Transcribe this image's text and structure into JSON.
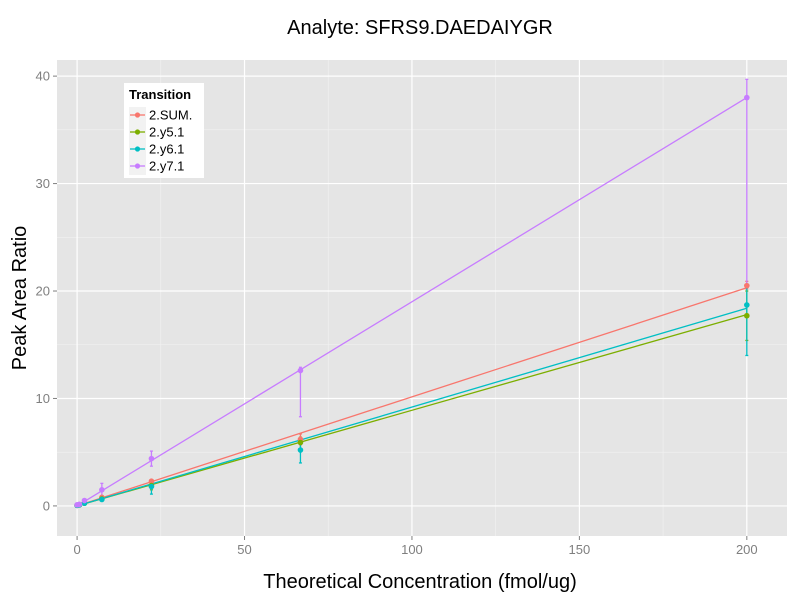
{
  "chart_data": {
    "type": "line",
    "title": "Analyte: SFRS9.DAEDAIYGR",
    "xlabel": "Theoretical Concentration (fmol/ug)",
    "ylabel": "Peak Area Ratio",
    "xlim": [
      -6,
      212
    ],
    "ylim": [
      -2.8,
      41.5
    ],
    "x_ticks": [
      0,
      50,
      100,
      150,
      200
    ],
    "y_ticks": [
      0,
      10,
      20,
      30,
      40
    ],
    "grid": true,
    "legend": {
      "title": "Transition",
      "position": "top-left",
      "entries": [
        "2.SUM.",
        "2.y5.1",
        "2.y6.1",
        "2.y7.1"
      ]
    },
    "series": [
      {
        "name": "2.SUM.",
        "color": "#F8766D",
        "fit": [
          [
            0,
            0.0
          ],
          [
            200,
            20.3
          ]
        ],
        "points": [
          {
            "x": 0,
            "y": 0.05
          },
          {
            "x": 0.7,
            "y": 0.1
          },
          {
            "x": 2.2,
            "y": 0.3
          },
          {
            "x": 7.4,
            "y": 0.8
          },
          {
            "x": 22.2,
            "y": 2.3
          },
          {
            "x": 66.7,
            "y": 6.2,
            "lo": 5.7,
            "hi": 6.7
          },
          {
            "x": 200,
            "y": 20.5,
            "lo": 20.2,
            "hi": 20.9
          }
        ]
      },
      {
        "name": "2.y5.1",
        "color": "#7CAE00",
        "fit": [
          [
            0,
            0.0
          ],
          [
            200,
            17.8
          ]
        ],
        "points": [
          {
            "x": 0,
            "y": 0.05
          },
          {
            "x": 0.7,
            "y": 0.1
          },
          {
            "x": 2.2,
            "y": 0.25
          },
          {
            "x": 7.4,
            "y": 0.65
          },
          {
            "x": 22.2,
            "y": 1.9,
            "lo": 1.5,
            "hi": 2.3
          },
          {
            "x": 66.7,
            "y": 5.9,
            "lo": 5.3,
            "hi": 6.4
          },
          {
            "x": 200,
            "y": 17.7,
            "lo": 15.4,
            "hi": 20.0
          }
        ]
      },
      {
        "name": "2.y6.1",
        "color": "#00BFC4",
        "fit": [
          [
            0,
            0.0
          ],
          [
            200,
            18.4
          ]
        ],
        "points": [
          {
            "x": 0,
            "y": 0.05
          },
          {
            "x": 0.7,
            "y": 0.1
          },
          {
            "x": 2.2,
            "y": 0.25
          },
          {
            "x": 7.4,
            "y": 0.6
          },
          {
            "x": 22.2,
            "y": 1.8,
            "lo": 1.1,
            "hi": 2.4
          },
          {
            "x": 66.7,
            "y": 5.2,
            "lo": 4.0,
            "hi": 6.3
          },
          {
            "x": 200,
            "y": 18.7,
            "lo": 14.0,
            "hi": 20.6
          }
        ]
      },
      {
        "name": "2.y7.1",
        "color": "#C77CFF",
        "fit": [
          [
            0,
            0.0
          ],
          [
            200,
            38.0
          ]
        ],
        "points": [
          {
            "x": 0,
            "y": 0.1
          },
          {
            "x": 0.7,
            "y": 0.15
          },
          {
            "x": 2.2,
            "y": 0.5
          },
          {
            "x": 7.4,
            "y": 1.5,
            "lo": 0.9,
            "hi": 2.1
          },
          {
            "x": 22.2,
            "y": 4.4,
            "lo": 3.7,
            "hi": 5.1
          },
          {
            "x": 66.7,
            "y": 12.6,
            "lo": 8.3,
            "hi": 12.9
          },
          {
            "x": 200,
            "y": 38.0,
            "lo": 20.5,
            "hi": 39.7
          }
        ]
      }
    ]
  }
}
